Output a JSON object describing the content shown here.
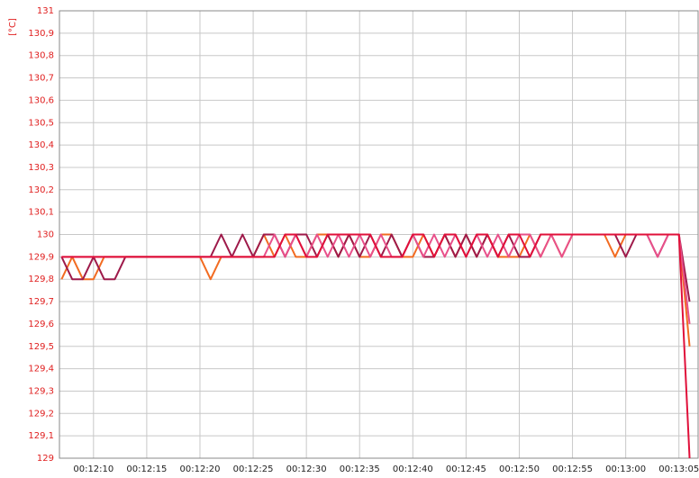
{
  "chart_data": {
    "type": "line",
    "y_unit": "[°C]",
    "x": [
      727,
      728,
      729,
      730,
      731,
      732,
      733,
      734,
      735,
      736,
      737,
      738,
      739,
      740,
      741,
      742,
      743,
      744,
      745,
      746,
      747,
      748,
      749,
      750,
      751,
      752,
      753,
      754,
      755,
      756,
      757,
      758,
      759,
      760,
      761,
      762,
      763,
      764,
      765,
      766,
      767,
      768,
      769,
      770,
      771,
      772,
      773,
      774,
      775,
      776,
      777,
      778,
      779,
      780,
      781,
      782,
      783,
      784,
      785,
      786
    ],
    "series": [
      {
        "color": "#f26b21",
        "values": [
          129.8,
          129.9,
          129.8,
          129.8,
          129.9,
          129.9,
          129.9,
          129.9,
          129.9,
          129.9,
          129.9,
          129.9,
          129.9,
          129.9,
          129.8,
          129.9,
          129.9,
          129.9,
          129.9,
          130,
          129.9,
          130,
          129.9,
          129.9,
          130,
          130,
          129.9,
          130,
          129.9,
          129.9,
          130,
          130,
          129.9,
          129.9,
          130,
          129.9,
          130,
          129.9,
          130,
          129.9,
          130,
          129.9,
          129.9,
          129.9,
          130,
          129.9,
          130,
          129.9,
          130,
          130,
          130,
          130,
          129.9,
          130,
          130,
          130,
          130,
          130,
          130,
          129.5
        ]
      },
      {
        "color": "#9e1a4a",
        "values": [
          129.9,
          129.8,
          129.8,
          129.9,
          129.8,
          129.8,
          129.9,
          129.9,
          129.9,
          129.9,
          129.9,
          129.9,
          129.9,
          129.9,
          129.9,
          130,
          129.9,
          130,
          129.9,
          130,
          130,
          129.9,
          130,
          130,
          129.9,
          130,
          129.9,
          130,
          129.9,
          130,
          129.9,
          130,
          129.9,
          130,
          129.9,
          129.9,
          130,
          129.9,
          130,
          129.9,
          130,
          129.9,
          130,
          129.9,
          129.9,
          130,
          130,
          130,
          130,
          130,
          130,
          130,
          130,
          129.9,
          130,
          130,
          129.9,
          130,
          130,
          129.7
        ]
      },
      {
        "color": "#e8508a",
        "values": [
          129.9,
          129.9,
          129.9,
          129.9,
          129.9,
          129.9,
          129.9,
          129.9,
          129.9,
          129.9,
          129.9,
          129.9,
          129.9,
          129.9,
          129.9,
          129.9,
          129.9,
          129.9,
          129.9,
          129.9,
          130,
          129.9,
          130,
          129.9,
          130,
          129.9,
          130,
          129.9,
          130,
          129.9,
          130,
          129.9,
          129.9,
          130,
          129.9,
          130,
          129.9,
          130,
          129.9,
          130,
          129.9,
          130,
          129.9,
          130,
          130,
          129.9,
          130,
          129.9,
          130,
          130,
          130,
          130,
          130,
          130,
          130,
          130,
          129.9,
          130,
          130,
          129.6
        ]
      },
      {
        "color": "#e0103a",
        "values": [
          129.9,
          129.9,
          129.9,
          129.9,
          129.9,
          129.9,
          129.9,
          129.9,
          129.9,
          129.9,
          129.9,
          129.9,
          129.9,
          129.9,
          129.9,
          129.9,
          129.9,
          129.9,
          129.9,
          129.9,
          129.9,
          130,
          130,
          129.9,
          129.9,
          130,
          130,
          130,
          130,
          130,
          129.9,
          129.9,
          129.9,
          130,
          130,
          129.9,
          130,
          130,
          129.9,
          130,
          130,
          129.9,
          130,
          130,
          129.9,
          130,
          130,
          130,
          130,
          130,
          130,
          130,
          130,
          130,
          130,
          130,
          130,
          130,
          130,
          129
        ]
      }
    ],
    "xlim": [
      726.8,
      786.8
    ],
    "xticks": [
      {
        "value": 730,
        "label": "00:12:10"
      },
      {
        "value": 735,
        "label": "00:12:15"
      },
      {
        "value": 740,
        "label": "00:12:20"
      },
      {
        "value": 745,
        "label": "00:12:25"
      },
      {
        "value": 750,
        "label": "00:12:30"
      },
      {
        "value": 755,
        "label": "00:12:35"
      },
      {
        "value": 760,
        "label": "00:12:40"
      },
      {
        "value": 765,
        "label": "00:12:45"
      },
      {
        "value": 770,
        "label": "00:12:50"
      },
      {
        "value": 775,
        "label": "00:12:55"
      },
      {
        "value": 780,
        "label": "00:13:00"
      },
      {
        "value": 785,
        "label": "00:13:05"
      }
    ],
    "ylim": [
      129,
      131
    ],
    "yticks": [
      129,
      {
        "value": 129.1,
        "label": "129,1"
      },
      {
        "value": 129.2,
        "label": "129,2"
      },
      {
        "value": 129.3,
        "label": "129,3"
      },
      {
        "value": 129.4,
        "label": "129,4"
      },
      {
        "value": 129.5,
        "label": "129,5"
      },
      {
        "value": 129.6,
        "label": "129,6"
      },
      {
        "value": 129.7,
        "label": "129,7"
      },
      {
        "value": 129.8,
        "label": "129,8"
      },
      {
        "value": 129.9,
        "label": "129,9"
      },
      130,
      {
        "value": 130.1,
        "label": "130,1"
      },
      {
        "value": 130.2,
        "label": "130,2"
      },
      {
        "value": 130.3,
        "label": "130,3"
      },
      {
        "value": 130.4,
        "label": "130,4"
      },
      {
        "value": 130.5,
        "label": "130,5"
      },
      {
        "value": 130.6,
        "label": "130,6"
      },
      {
        "value": 130.7,
        "label": "130,7"
      },
      {
        "value": 130.8,
        "label": "130,8"
      },
      {
        "value": 130.9,
        "label": "130,9"
      },
      131
    ],
    "grid": true,
    "tick_label_color": "#e02020"
  }
}
